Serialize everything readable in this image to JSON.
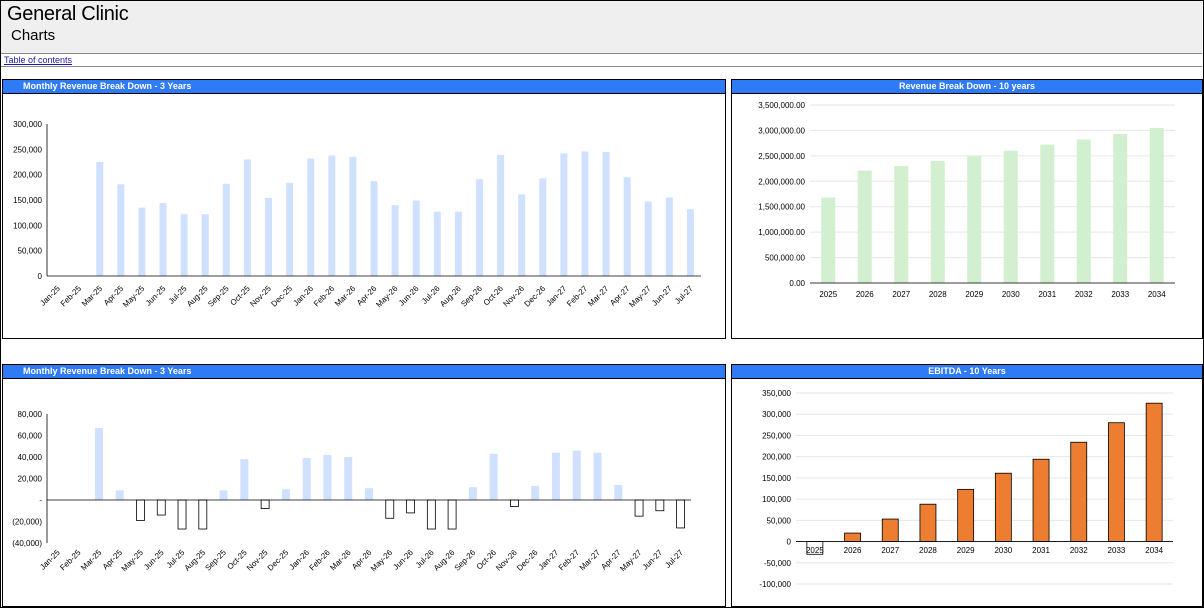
{
  "header": {
    "app_title": "General Clinic",
    "page_subtitle": "Charts",
    "toc_link": "Table of contents"
  },
  "colors": {
    "panel_title_bg": "#2f7bf5",
    "bar_light_blue": "#d0e1ff",
    "bar_light_green": "#d2f0cf",
    "bar_orange": "#ed7d31"
  },
  "panels": {
    "top_left_title": "Monthly Revenue Break Down - 3 Years",
    "top_right_title": "Revenue Break Down - 10 years",
    "bottom_left_title": "Monthly Revenue Break Down - 3 Years",
    "bottom_right_title": "EBITDA - 10 Years"
  },
  "chart_data": [
    {
      "type": "bar",
      "title": "Monthly Revenue Break Down - 3 Years",
      "categories": [
        "Jan-25",
        "Feb-25",
        "Mar-25",
        "Apr-25",
        "May-25",
        "Jun-25",
        "Jul-25",
        "Aug-25",
        "Sep-25",
        "Oct-25",
        "Nov-25",
        "Dec-25",
        "Jan-26",
        "Feb-26",
        "Mar-26",
        "Apr-26",
        "May-26",
        "Jun-26",
        "Jul-26",
        "Aug-26",
        "Sep-26",
        "Oct-26",
        "Nov-26",
        "Dec-26",
        "Jan-27",
        "Feb-27",
        "Mar-27",
        "Apr-27",
        "May-27",
        "Jun-27",
        "Jul-27"
      ],
      "values": [
        0,
        0,
        225000,
        181000,
        135000,
        144000,
        122000,
        122000,
        182000,
        230000,
        154000,
        184000,
        232000,
        238000,
        235000,
        187000,
        140000,
        149000,
        127000,
        127000,
        191000,
        239000,
        161000,
        193000,
        242000,
        246000,
        245000,
        195000,
        147000,
        155000,
        132000
      ],
      "yticks": [
        0,
        50000,
        100000,
        150000,
        200000,
        250000,
        300000
      ],
      "ytick_labels": [
        "0",
        "50,000",
        "100,000",
        "150,000",
        "200,000",
        "250,000",
        "300,000"
      ],
      "ylim": [
        0,
        300000
      ],
      "color": "#d0e1ff",
      "grid": false
    },
    {
      "type": "bar",
      "title": "Revenue Break Down - 10 years",
      "categories": [
        "2025",
        "2026",
        "2027",
        "2028",
        "2029",
        "2030",
        "2031",
        "2032",
        "2033",
        "2034"
      ],
      "values": [
        1680000,
        2210000,
        2300000,
        2400000,
        2500000,
        2600000,
        2720000,
        2820000,
        2930000,
        3050000
      ],
      "yticks": [
        0,
        500000,
        1000000,
        1500000,
        2000000,
        2500000,
        3000000,
        3500000
      ],
      "ytick_labels": [
        "0.00",
        "500,000.00",
        "1,000,000.00",
        "1,500,000.00",
        "2,000,000.00",
        "2,500,000.00",
        "3,000,000.00",
        "3,500,000.00"
      ],
      "ylim": [
        0,
        3500000
      ],
      "color": "#d2f0cf",
      "grid": true
    },
    {
      "type": "bar",
      "title": "Monthly Revenue Break Down - 3 Years",
      "categories": [
        "Jan-25",
        "Feb-25",
        "Mar-25",
        "Apr-25",
        "May-25",
        "Jun-25",
        "Jul-25",
        "Aug-25",
        "Sep-25",
        "Oct-25",
        "Nov-25",
        "Dec-25",
        "Jan-26",
        "Feb-26",
        "Mar-26",
        "Apr-26",
        "May-26",
        "Jun-26",
        "Jul-26",
        "Aug-26",
        "Sep-26",
        "Oct-26",
        "Nov-26",
        "Dec-26",
        "Jan-27",
        "Feb-27",
        "Mar-27",
        "Apr-27",
        "May-27",
        "Jun-27",
        "Jul-27"
      ],
      "values": [
        0,
        0,
        67000,
        9000,
        -19000,
        -14000,
        -27000,
        -27000,
        9000,
        38000,
        -8000,
        10000,
        39000,
        42000,
        40000,
        11000,
        -17000,
        -12000,
        -27000,
        -27000,
        12000,
        43000,
        -6000,
        13000,
        44000,
        46000,
        44000,
        14000,
        -15000,
        -10000,
        -26000
      ],
      "yticks": [
        -40000,
        -20000,
        0,
        20000,
        40000,
        60000,
        80000
      ],
      "ytick_labels": [
        "(40,000)",
        "(20,000)",
        "-",
        "20,000",
        "40,000",
        "60,000",
        "80,000"
      ],
      "ylim": [
        -40000,
        80000
      ],
      "color_positive": "#d0e1ff",
      "color_negative": "#ffffff",
      "grid": false
    },
    {
      "type": "bar",
      "title": "EBITDA - 10 Years",
      "categories": [
        "2025",
        "2026",
        "2027",
        "2028",
        "2029",
        "2030",
        "2031",
        "2032",
        "2033",
        "2034"
      ],
      "values": [
        -30000,
        20000,
        53000,
        88000,
        123000,
        161000,
        194000,
        234000,
        280000,
        326000
      ],
      "yticks": [
        -100000,
        -50000,
        0,
        50000,
        100000,
        150000,
        200000,
        250000,
        300000,
        350000
      ],
      "ytick_labels": [
        "-100,000",
        "-50,000",
        "0",
        "50,000",
        "100,000",
        "150,000",
        "200,000",
        "250,000",
        "300,000",
        "350,000"
      ],
      "ylim": [
        -100000,
        350000
      ],
      "color": "#ed7d31",
      "color_negative": "#ffffff",
      "grid": true
    }
  ]
}
